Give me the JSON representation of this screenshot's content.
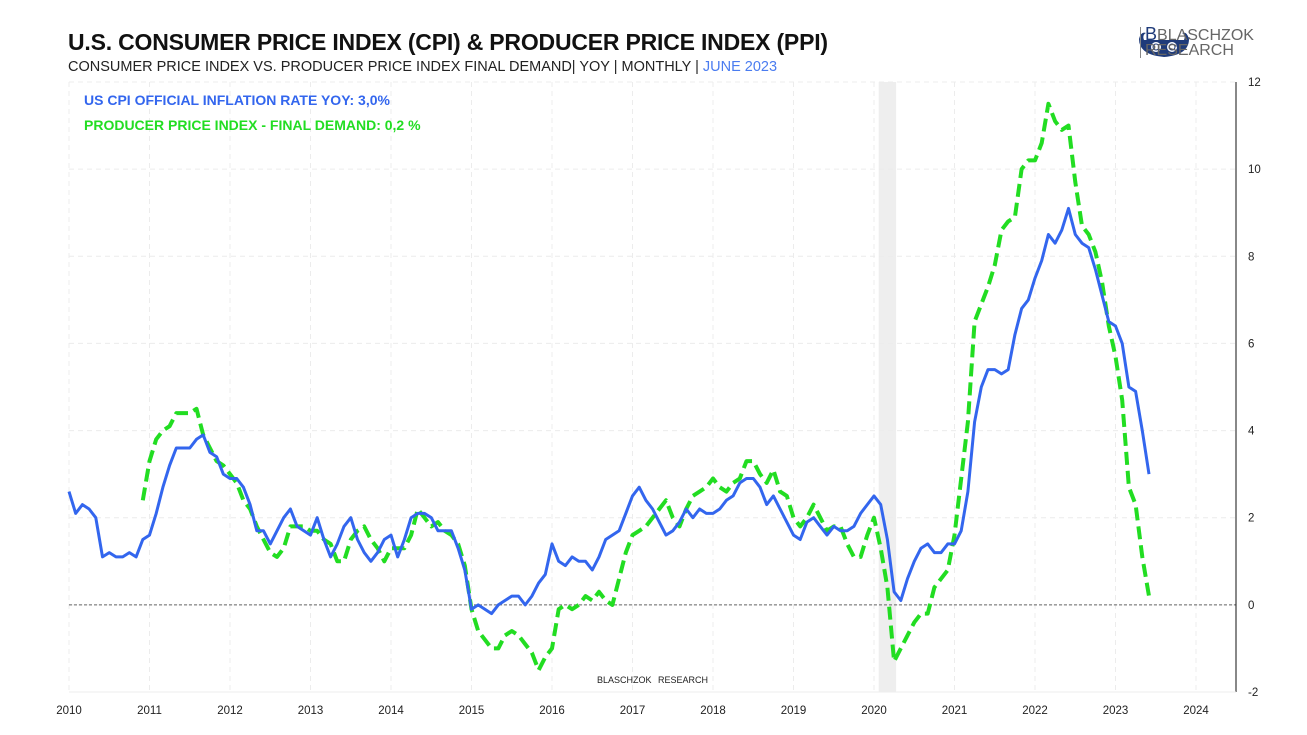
{
  "header": {
    "title": "U.S. CONSUMER PRICE INDEX (CPI) & PRODUCER PRICE INDEX (PPI)",
    "subtitle": "CONSUMER PRICE INDEX VS. PRODUCER PRICE INDEX FINAL DEMAND| YOY | MONTHLY | ",
    "subtitle_highlight": "JUNE 2023"
  },
  "logo": {
    "line1": "BLASCHZOK",
    "line2": "RESEARCH",
    "color": "#1f3b7a"
  },
  "watermark": "BLASCHZOK  RESEARCH",
  "chart_data": {
    "type": "line",
    "frequency": "monthly",
    "xlim": [
      "2010-01",
      "2024-12"
    ],
    "ylim": [
      -2,
      12
    ],
    "x_ticks": [
      "2010",
      "2011",
      "2012",
      "2013",
      "2014",
      "2015",
      "2016",
      "2017",
      "2018",
      "2019",
      "2020",
      "2021",
      "2022",
      "2023",
      "2024"
    ],
    "y_ticks": [
      -2,
      0,
      2,
      4,
      6,
      8,
      10,
      12
    ],
    "y_axis_side": "right",
    "grid": true,
    "zero_line": "dashed",
    "shaded_periods": [
      [
        "2020-02",
        "2020-04"
      ]
    ],
    "legend_placement": "top-left",
    "series": [
      {
        "name": "US CPI OFFICIAL INFLATION RATE YOY: 3,0%",
        "color": "#3366ee",
        "style": "solid",
        "start": "2010-01",
        "values": [
          2.6,
          2.1,
          2.3,
          2.2,
          2.0,
          1.1,
          1.2,
          1.1,
          1.1,
          1.2,
          1.1,
          1.5,
          1.6,
          2.1,
          2.7,
          3.2,
          3.6,
          3.6,
          3.6,
          3.8,
          3.9,
          3.5,
          3.4,
          3.0,
          2.9,
          2.9,
          2.7,
          2.3,
          1.7,
          1.7,
          1.4,
          1.7,
          2.0,
          2.2,
          1.8,
          1.7,
          1.6,
          2.0,
          1.5,
          1.1,
          1.4,
          1.8,
          2.0,
          1.5,
          1.2,
          1.0,
          1.2,
          1.5,
          1.6,
          1.1,
          1.5,
          2.0,
          2.1,
          2.1,
          2.0,
          1.7,
          1.7,
          1.7,
          1.3,
          0.8,
          -0.1,
          0.0,
          -0.1,
          -0.2,
          0.0,
          0.1,
          0.2,
          0.2,
          0.0,
          0.2,
          0.5,
          0.7,
          1.4,
          1.0,
          0.9,
          1.1,
          1.0,
          1.0,
          0.8,
          1.1,
          1.5,
          1.6,
          1.7,
          2.1,
          2.5,
          2.7,
          2.4,
          2.2,
          1.9,
          1.6,
          1.7,
          1.9,
          2.2,
          2.0,
          2.2,
          2.1,
          2.1,
          2.2,
          2.4,
          2.5,
          2.8,
          2.9,
          2.9,
          2.7,
          2.3,
          2.5,
          2.2,
          1.9,
          1.6,
          1.5,
          1.9,
          2.0,
          1.8,
          1.6,
          1.8,
          1.7,
          1.7,
          1.8,
          2.1,
          2.3,
          2.5,
          2.3,
          1.5,
          0.3,
          0.1,
          0.6,
          1.0,
          1.3,
          1.4,
          1.2,
          1.2,
          1.4,
          1.4,
          1.7,
          2.6,
          4.2,
          5.0,
          5.4,
          5.4,
          5.3,
          5.4,
          6.2,
          6.8,
          7.0,
          7.5,
          7.9,
          8.5,
          8.3,
          8.6,
          9.1,
          8.5,
          8.3,
          8.2,
          7.7,
          7.1,
          6.5,
          6.4,
          6.0,
          5.0,
          4.9,
          4.0,
          3.0
        ]
      },
      {
        "name": "PRODUCER PRICE INDEX - FINAL DEMAND: 0,2 %",
        "color": "#22dd22",
        "style": "dashed",
        "start": "2010-12",
        "values": [
          2.4,
          3.3,
          3.8,
          4.0,
          4.1,
          4.4,
          4.4,
          4.4,
          4.5,
          3.9,
          3.6,
          3.3,
          3.2,
          3.0,
          2.8,
          2.4,
          2.2,
          1.8,
          1.5,
          1.2,
          1.1,
          1.3,
          1.8,
          1.8,
          1.8,
          1.7,
          1.7,
          1.5,
          1.4,
          1.0,
          1.0,
          1.5,
          1.7,
          1.8,
          1.5,
          1.3,
          1.0,
          1.3,
          1.3,
          1.3,
          1.6,
          2.2,
          2.0,
          1.8,
          1.9,
          1.7,
          1.6,
          1.4,
          0.9,
          -0.1,
          -0.6,
          -0.8,
          -1.0,
          -1.0,
          -0.7,
          -0.6,
          -0.7,
          -0.9,
          -1.1,
          -1.5,
          -1.2,
          -1.0,
          -0.1,
          0.0,
          -0.1,
          0.0,
          0.2,
          0.1,
          0.3,
          0.1,
          0.0,
          0.6,
          1.2,
          1.6,
          1.7,
          1.8,
          2.0,
          2.2,
          2.4,
          2.0,
          1.8,
          2.2,
          2.5,
          2.6,
          2.7,
          2.9,
          2.7,
          2.6,
          2.8,
          2.9,
          3.3,
          3.3,
          3.0,
          2.8,
          3.1,
          2.6,
          2.5,
          2.0,
          1.8,
          2.0,
          2.3,
          2.0,
          1.7,
          1.8,
          1.8,
          1.4,
          1.1,
          1.1,
          1.6,
          2.0,
          1.3,
          0.4,
          -1.3,
          -1.0,
          -0.7,
          -0.4,
          -0.2,
          -0.2,
          0.4,
          0.6,
          0.8,
          1.6,
          2.9,
          4.2,
          6.5,
          6.9,
          7.3,
          7.8,
          8.6,
          8.8,
          8.9,
          10.0,
          10.2,
          10.2,
          10.6,
          11.5,
          11.1,
          10.9,
          11.0,
          9.7,
          8.7,
          8.5,
          8.1,
          7.4,
          6.4,
          5.7,
          4.7,
          2.7,
          2.3,
          1.1,
          0.2
        ]
      }
    ]
  }
}
